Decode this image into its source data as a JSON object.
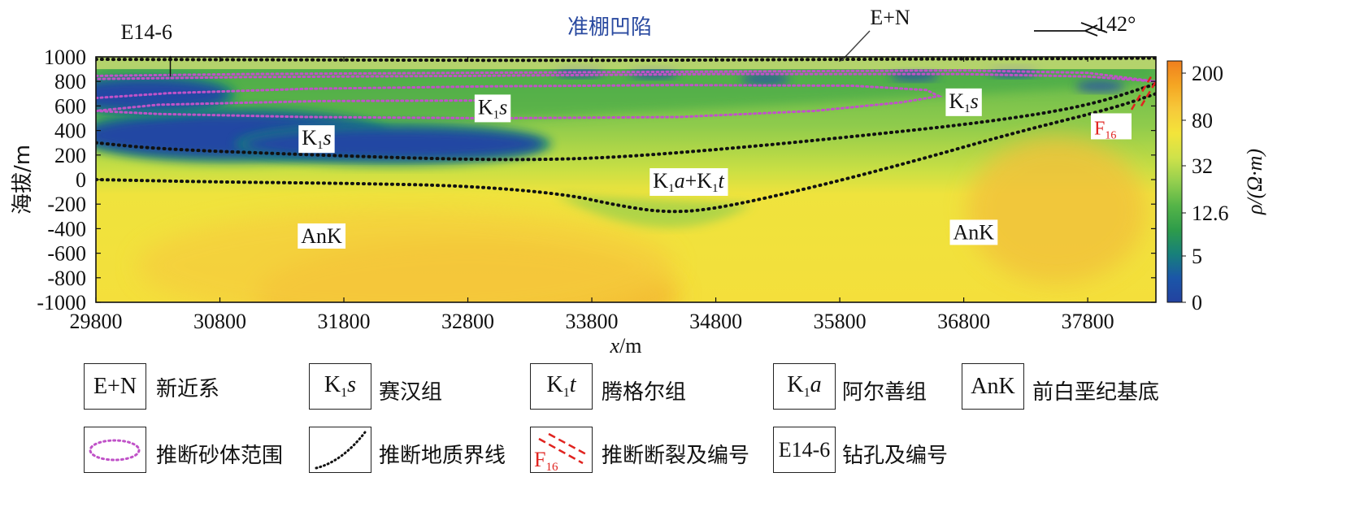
{
  "chart_data": {
    "type": "heatmap",
    "title": "准棚凹陷",
    "direction_label": "142°",
    "borehole_label": "E14-6",
    "top_unit_label": "E+N",
    "xlabel": "x/m",
    "ylabel": "海拔/m",
    "xlim": [
      29800,
      38350
    ],
    "ylim": [
      -1000,
      1000
    ],
    "x_ticks": [
      29800,
      30800,
      31800,
      32800,
      33800,
      34800,
      35800,
      36800,
      37800
    ],
    "y_ticks": [
      1000,
      800,
      600,
      400,
      200,
      0,
      -200,
      -400,
      -600,
      -800,
      -1000
    ],
    "colorbar": {
      "label": "ρ/(Ω·m)",
      "ticks": [
        "200",
        "80",
        "32",
        "12.6",
        "5",
        "0"
      ],
      "colors": [
        "#f07f1e",
        "#f5a623",
        "#f6c93a",
        "#f3e43a",
        "#cfe24a",
        "#94cf4e",
        "#55b448",
        "#2e9c4a",
        "#17807a",
        "#1b56a8",
        "#2342a0"
      ]
    },
    "unit_labels": [
      {
        "text": "K1s",
        "x": 33000,
        "y": 600
      },
      {
        "text": "K1s",
        "x": 31580,
        "y": 350
      },
      {
        "text": "K1s",
        "x": 36800,
        "y": 650
      },
      {
        "text": "K1a+K1t",
        "x": 34580,
        "y": 0
      },
      {
        "text": "AnK",
        "x": 31620,
        "y": -450
      },
      {
        "text": "AnK",
        "x": 36880,
        "y": -420
      }
    ],
    "fault_label": "F16",
    "geologic_boundaries": [
      {
        "name": "E+N base",
        "points": [
          [
            29800,
            980
          ],
          [
            31800,
            975
          ],
          [
            33800,
            970
          ],
          [
            35800,
            980
          ],
          [
            37300,
            985
          ],
          [
            38350,
            990
          ]
        ]
      },
      {
        "name": "K1s base",
        "points": [
          [
            29800,
            300
          ],
          [
            30300,
            250
          ],
          [
            31300,
            210
          ],
          [
            32500,
            170
          ],
          [
            33300,
            160
          ],
          [
            34000,
            180
          ],
          [
            35000,
            260
          ],
          [
            36000,
            360
          ],
          [
            37000,
            470
          ],
          [
            37800,
            600
          ],
          [
            38350,
            780
          ]
        ]
      },
      {
        "name": "K1a+K1t base",
        "points": [
          [
            29800,
            0
          ],
          [
            30800,
            -20
          ],
          [
            31800,
            -30
          ],
          [
            32800,
            -50
          ],
          [
            33600,
            -120
          ],
          [
            34000,
            -210
          ],
          [
            34400,
            -270
          ],
          [
            34800,
            -240
          ],
          [
            35600,
            -60
          ],
          [
            36400,
            150
          ],
          [
            37200,
            380
          ],
          [
            38000,
            580
          ],
          [
            38350,
            700
          ]
        ]
      }
    ],
    "sand_bodies": [
      {
        "name": "upper band",
        "points": [
          [
            29800,
            845
          ],
          [
            31000,
            860
          ],
          [
            32800,
            870
          ],
          [
            34800,
            880
          ],
          [
            36800,
            890
          ],
          [
            37800,
            870
          ],
          [
            38350,
            800
          ],
          [
            37800,
            840
          ],
          [
            36800,
            860
          ],
          [
            34800,
            860
          ],
          [
            32800,
            845
          ],
          [
            31000,
            835
          ],
          [
            29800,
            820
          ]
        ]
      },
      {
        "name": "main body",
        "points": [
          [
            29800,
            665
          ],
          [
            30400,
            705
          ],
          [
            31500,
            740
          ],
          [
            33000,
            760
          ],
          [
            34500,
            770
          ],
          [
            35900,
            765
          ],
          [
            36500,
            730
          ],
          [
            36600,
            680
          ],
          [
            36300,
            630
          ],
          [
            35600,
            560
          ],
          [
            34500,
            510
          ],
          [
            33000,
            500
          ],
          [
            31500,
            510
          ],
          [
            30300,
            535
          ],
          [
            29800,
            560
          ],
          [
            30300,
            610
          ],
          [
            31600,
            640
          ],
          [
            33000,
            645
          ]
        ]
      }
    ],
    "blue_bodies": [
      {
        "x": 30900,
        "y": 360,
        "rx": 1200,
        "ry": 170
      },
      {
        "x": 32200,
        "y": 290,
        "rx": 1200,
        "ry": 120
      },
      {
        "x": 30200,
        "y": 690,
        "rx": 650,
        "ry": 120
      }
    ]
  },
  "legend": {
    "items": [
      {
        "key": "E+N",
        "label": "新近系"
      },
      {
        "key": "K1s",
        "label": "赛汉组"
      },
      {
        "key": "K1t",
        "label": "腾格尔组"
      },
      {
        "key": "K1a",
        "label": "阿尔善组"
      },
      {
        "key": "AnK",
        "label": "前白垩纪基底"
      }
    ],
    "sand_label": "推断砂体范围",
    "boundary_label": "推断地质界线",
    "fault_label": "推断断裂及编号",
    "fault_sample": "F16",
    "borehole_key": "E14-6",
    "borehole_label": "钻孔及编号"
  }
}
